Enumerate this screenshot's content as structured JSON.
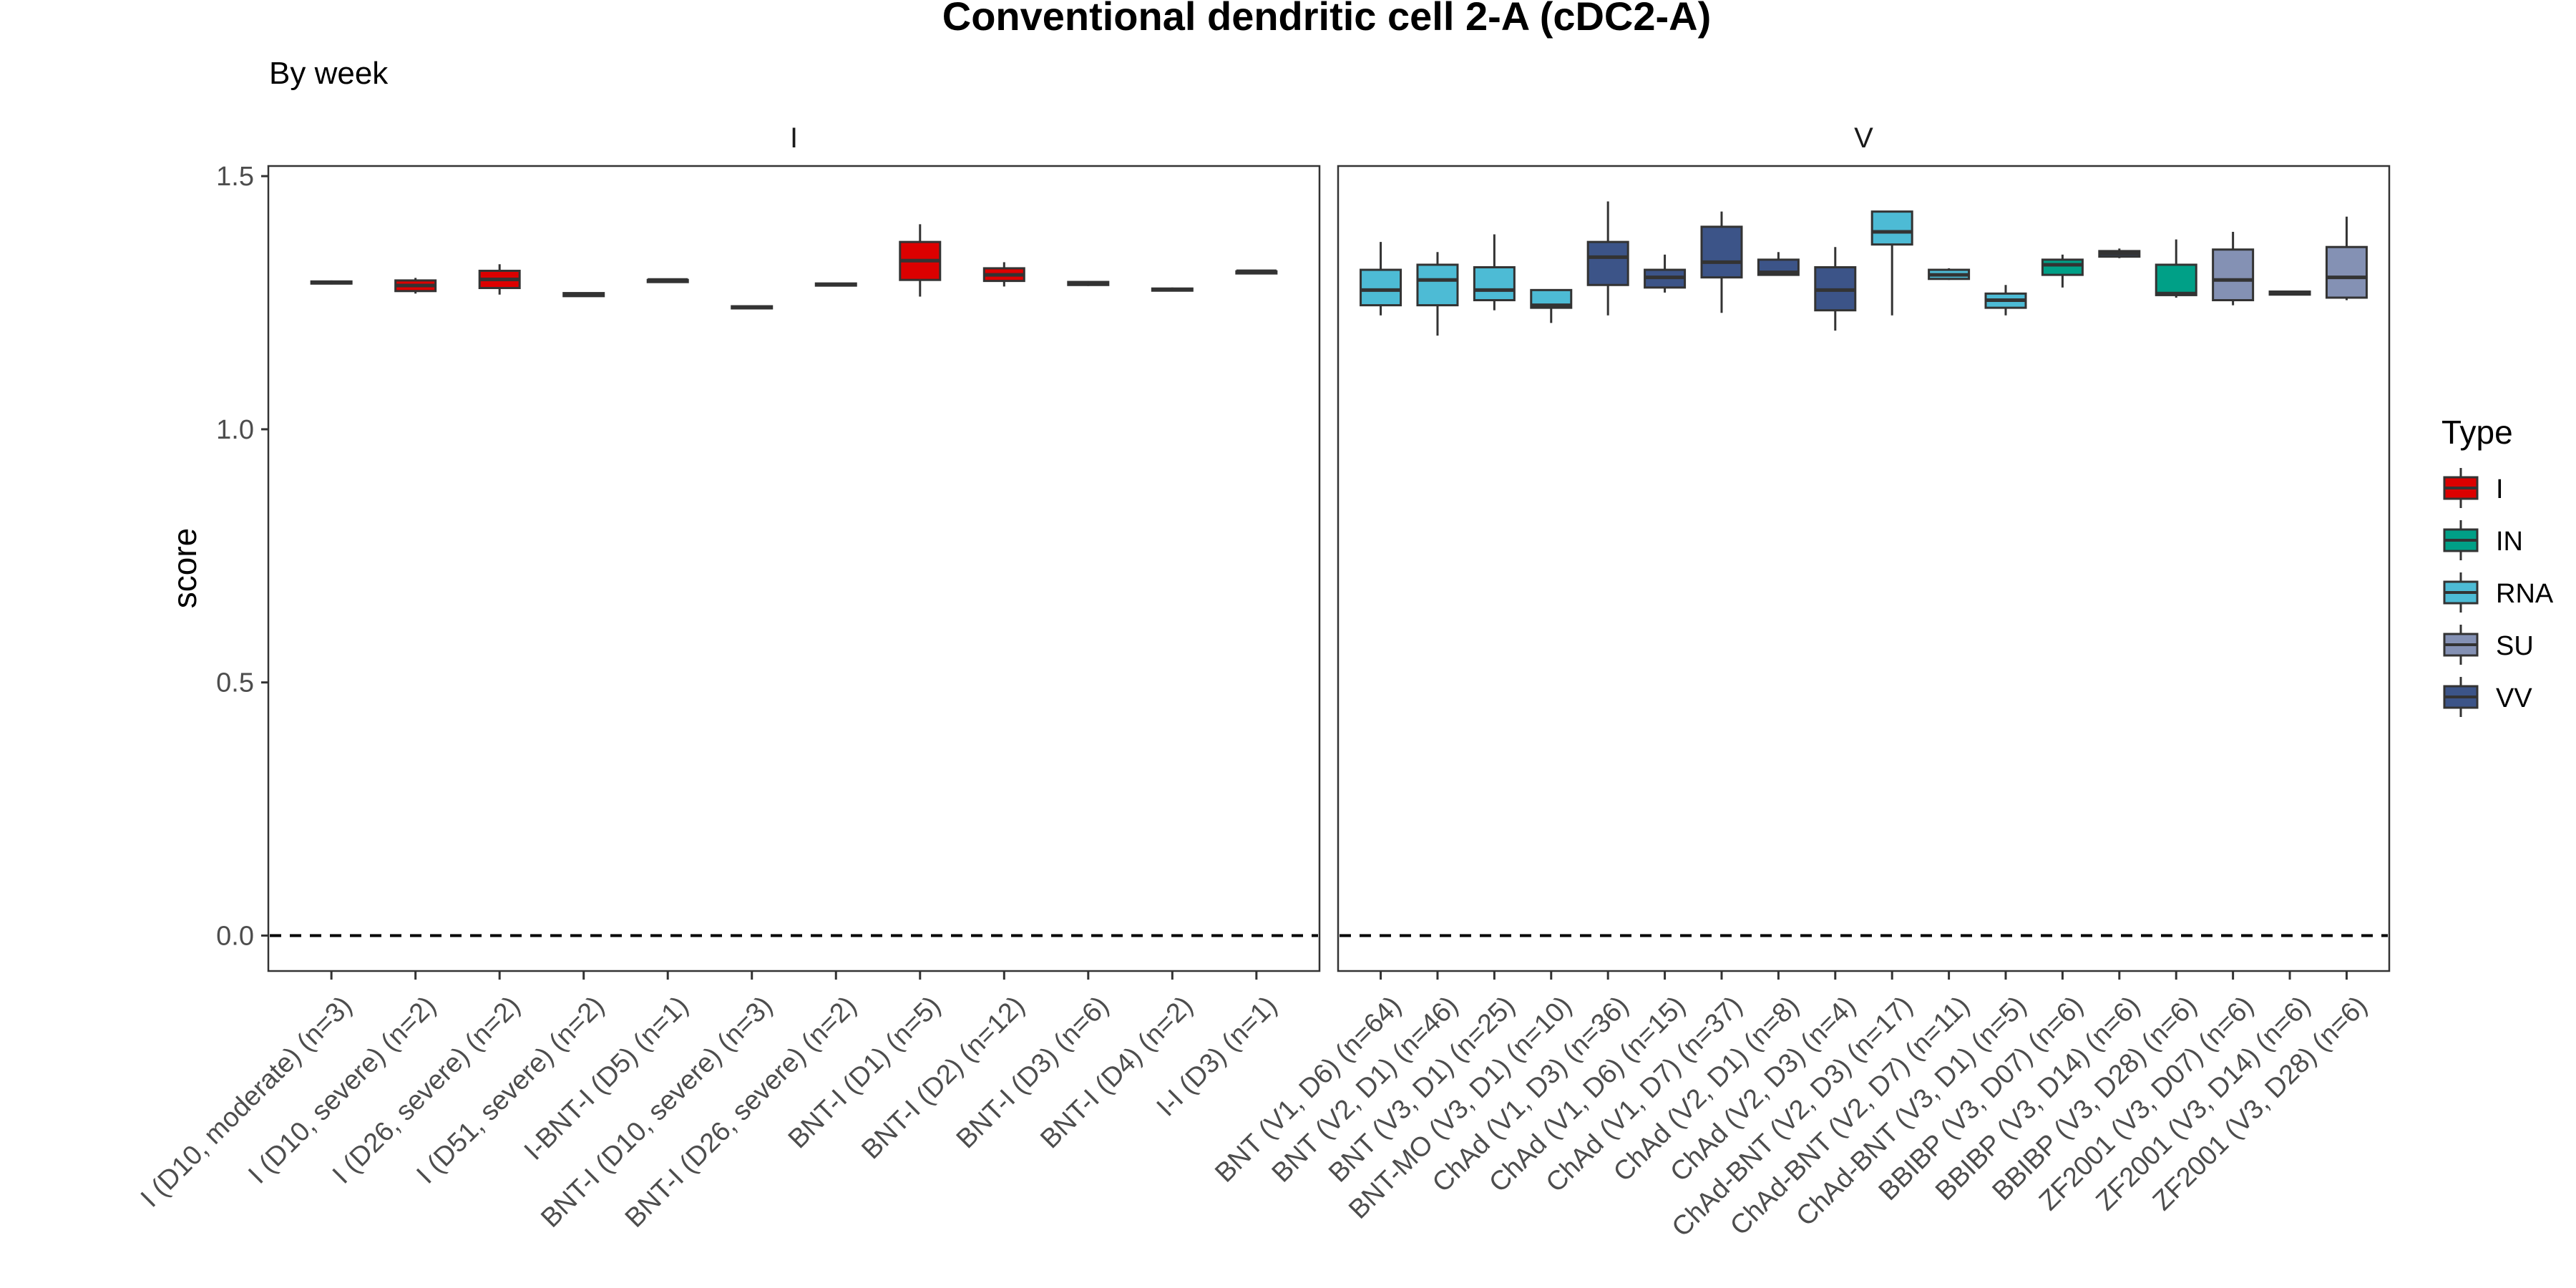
{
  "chart_data": {
    "type": "box",
    "title": "Conventional dendritic cell 2-A (cDC2-A)",
    "subtitle": "By week",
    "ylabel": "score",
    "xlabel": "",
    "ylim": [
      -0.07,
      1.52
    ],
    "yticks": [
      0.0,
      0.5,
      1.0,
      1.5
    ],
    "ytick_labels": [
      "0.0",
      "0.5",
      "1.0",
      "1.5"
    ],
    "reference_line": {
      "y": 0.0,
      "style": "dashed"
    },
    "grid": false,
    "legend": {
      "title": "Type",
      "position": "right",
      "entries": [
        {
          "label": "I",
          "color": "#DC0000"
        },
        {
          "label": "IN",
          "color": "#00A087"
        },
        {
          "label": "RNA",
          "color": "#4DBBD5"
        },
        {
          "label": "SU",
          "color": "#8491B4"
        },
        {
          "label": "VV",
          "color": "#3C5488"
        }
      ]
    },
    "facets": [
      {
        "label": "I",
        "groups": [
          {
            "label": "I (D10, moderate) (n=3)",
            "type": "I",
            "stats": [
              1.286,
              1.288,
              1.29,
              1.292,
              1.294
            ]
          },
          {
            "label": "I (D10, severe) (n=2)",
            "type": "I",
            "stats": [
              1.268,
              1.273,
              1.284,
              1.294,
              1.299
            ]
          },
          {
            "label": "I (D26, severe) (n=2)",
            "type": "I",
            "stats": [
              1.266,
              1.279,
              1.296,
              1.313,
              1.326
            ]
          },
          {
            "label": "I (D51, severe) (n=2)",
            "type": "I",
            "stats": [
              1.262,
              1.263,
              1.266,
              1.269,
              1.27
            ]
          },
          {
            "label": "I-BNT-I (D5) (n=1)",
            "type": "I",
            "stats": [
              1.295,
              1.295,
              1.295,
              1.295,
              1.295
            ]
          },
          {
            "label": "BNT-I (D10, severe) (n=3)",
            "type": "I",
            "stats": [
              1.237,
              1.239,
              1.241,
              1.243,
              1.245
            ]
          },
          {
            "label": "BNT-I (D26, severe) (n=2)",
            "type": "I",
            "stats": [
              1.283,
              1.284,
              1.286,
              1.288,
              1.289
            ]
          },
          {
            "label": "BNT-I (D1) (n=5)",
            "type": "I",
            "stats": [
              1.262,
              1.295,
              1.333,
              1.37,
              1.405
            ]
          },
          {
            "label": "BNT-I (D2) (n=12)",
            "type": "I",
            "stats": [
              1.282,
              1.293,
              1.305,
              1.318,
              1.33
            ]
          },
          {
            "label": "BNT-I (D3) (n=6)",
            "type": "I",
            "stats": [
              1.283,
              1.285,
              1.288,
              1.291,
              1.293
            ]
          },
          {
            "label": "BNT-I (D4) (n=2)",
            "type": "I",
            "stats": [
              1.272,
              1.274,
              1.276,
              1.278,
              1.28
            ]
          },
          {
            "label": "I-I (D3) (n=1)",
            "type": "I",
            "stats": [
              1.312,
              1.312,
              1.312,
              1.312,
              1.312
            ]
          }
        ]
      },
      {
        "label": "V",
        "groups": [
          {
            "label": "BNT (V1, D6) (n=64)",
            "type": "RNA",
            "stats": [
              1.225,
              1.245,
              1.275,
              1.315,
              1.37
            ]
          },
          {
            "label": "BNT (V2, D1) (n=46)",
            "type": "RNA",
            "stats": [
              1.185,
              1.245,
              1.295,
              1.325,
              1.35
            ]
          },
          {
            "label": "BNT (V3, D1) (n=25)",
            "type": "RNA",
            "stats": [
              1.235,
              1.255,
              1.275,
              1.32,
              1.385
            ]
          },
          {
            "label": "BNT-MO (V3, D1) (n=10)",
            "type": "RNA",
            "stats": [
              1.21,
              1.24,
              1.245,
              1.275,
              1.275
            ]
          },
          {
            "label": "ChAd (V1, D3) (n=36)",
            "type": "VV",
            "stats": [
              1.225,
              1.285,
              1.34,
              1.37,
              1.45
            ]
          },
          {
            "label": "ChAd (V1, D6) (n=15)",
            "type": "VV",
            "stats": [
              1.27,
              1.28,
              1.3,
              1.315,
              1.345
            ]
          },
          {
            "label": "ChAd (V1, D7) (n=37)",
            "type": "VV",
            "stats": [
              1.23,
              1.3,
              1.33,
              1.4,
              1.43
            ]
          },
          {
            "label": "ChAd (V2, D1) (n=8)",
            "type": "VV",
            "stats": [
              1.305,
              1.305,
              1.31,
              1.335,
              1.35
            ]
          },
          {
            "label": "ChAd (V2, D3) (n=4)",
            "type": "VV",
            "stats": [
              1.195,
              1.235,
              1.275,
              1.32,
              1.36
            ]
          },
          {
            "label": "ChAd-BNT (V2, D3) (n=17)",
            "type": "RNA",
            "stats": [
              1.225,
              1.365,
              1.39,
              1.43,
              1.43
            ]
          },
          {
            "label": "ChAd-BNT (V2, D7) (n=11)",
            "type": "RNA",
            "stats": [
              1.295,
              1.297,
              1.305,
              1.315,
              1.318
            ]
          },
          {
            "label": "ChAd-BNT (V3, D1) (n=5)",
            "type": "RNA",
            "stats": [
              1.225,
              1.24,
              1.255,
              1.268,
              1.285
            ]
          },
          {
            "label": "BBIBP (V3, D07) (n=6)",
            "type": "IN",
            "stats": [
              1.28,
              1.305,
              1.325,
              1.335,
              1.345
            ]
          },
          {
            "label": "BBIBP (V3, D14) (n=6)",
            "type": "VV",
            "stats": [
              1.338,
              1.341,
              1.347,
              1.352,
              1.357
            ]
          },
          {
            "label": "BBIBP (V3, D28) (n=6)",
            "type": "IN",
            "stats": [
              1.26,
              1.265,
              1.268,
              1.325,
              1.375
            ]
          },
          {
            "label": "ZF2001 (V3, D07) (n=6)",
            "type": "SU",
            "stats": [
              1.245,
              1.255,
              1.295,
              1.355,
              1.39
            ]
          },
          {
            "label": "ZF2001 (V3, D14) (n=6)",
            "type": "VV",
            "stats": [
              1.265,
              1.266,
              1.27,
              1.272,
              1.274
            ]
          },
          {
            "label": "ZF2001 (V3, D28) (n=6)",
            "type": "SU",
            "stats": [
              1.255,
              1.26,
              1.3,
              1.36,
              1.42
            ]
          }
        ]
      }
    ]
  }
}
